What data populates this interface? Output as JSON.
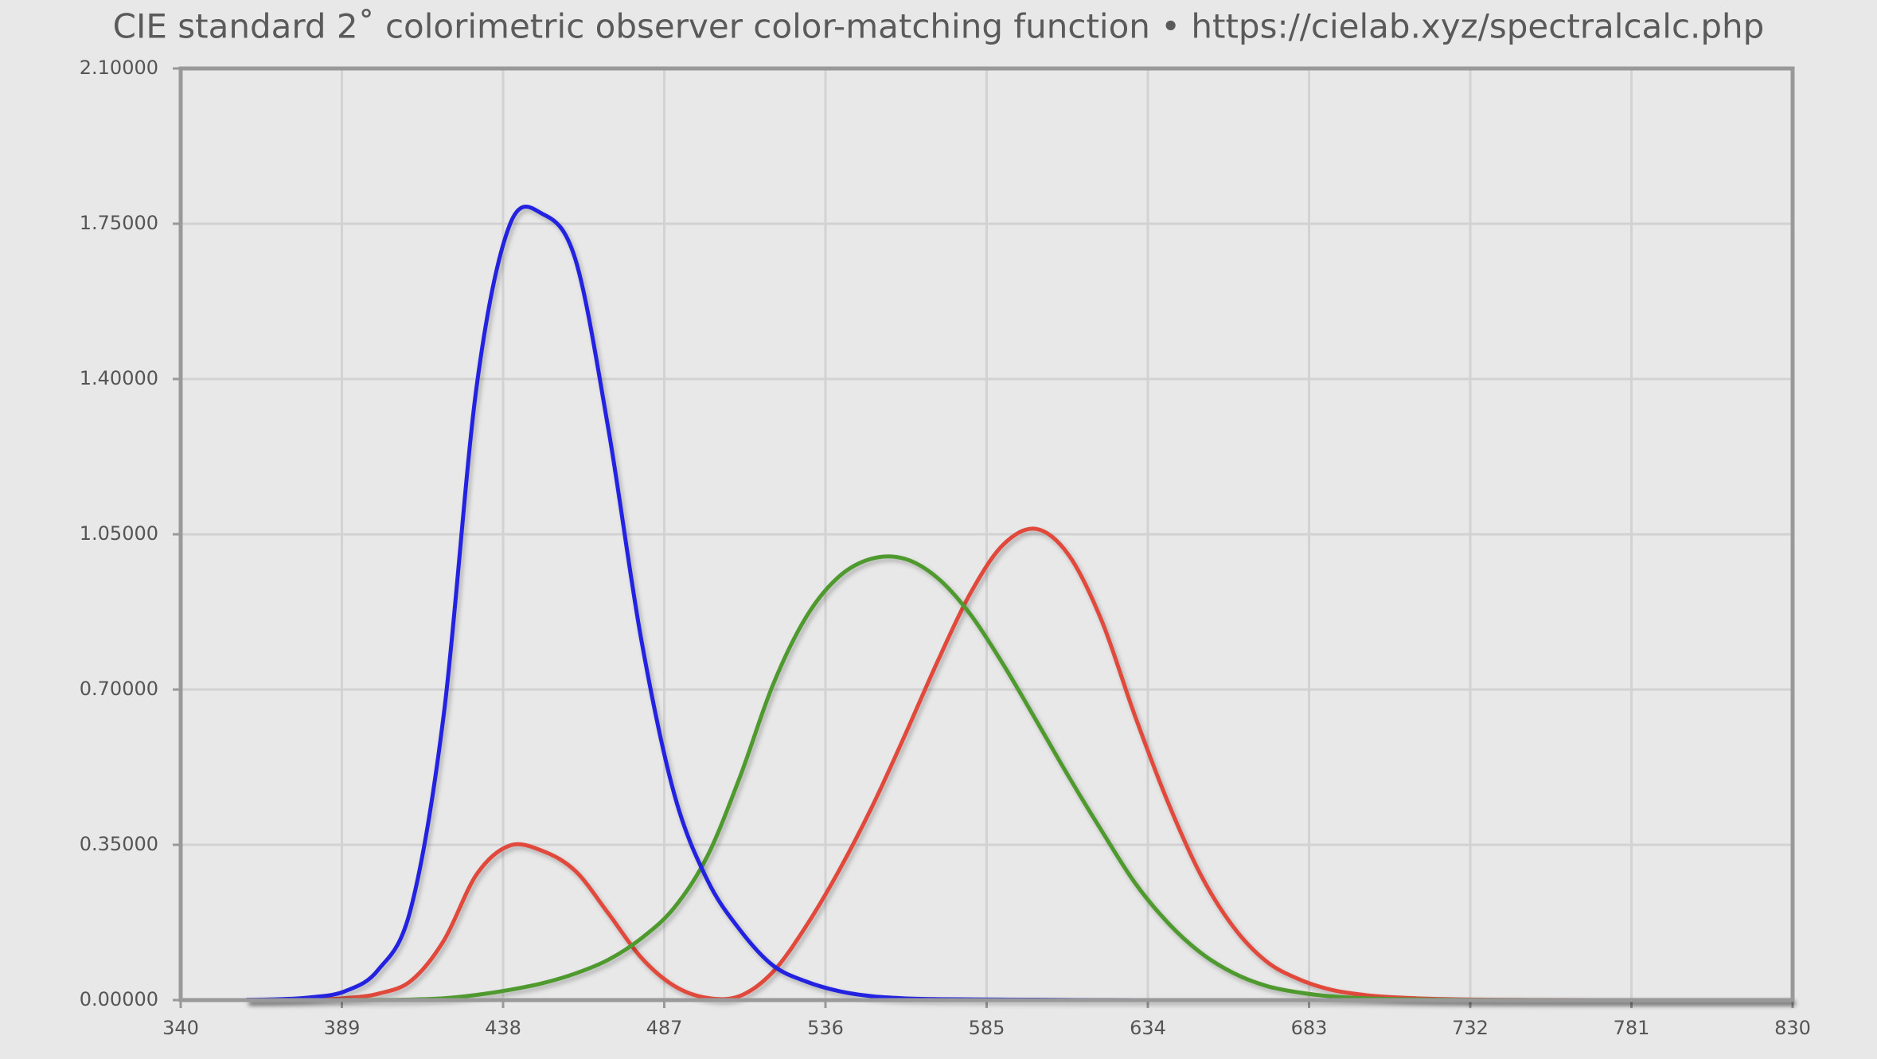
{
  "chart_data": {
    "type": "line",
    "title": "CIE standard 2˚ colorimetric observer color-matching function  •  https://cielab.xyz/spectralcalc.php",
    "x": [
      360,
      370,
      380,
      390,
      400,
      410,
      420,
      430,
      440,
      450,
      460,
      470,
      480,
      490,
      500,
      510,
      520,
      530,
      540,
      550,
      560,
      570,
      580,
      590,
      600,
      610,
      620,
      630,
      640,
      650,
      660,
      670,
      680,
      690,
      700,
      710,
      720,
      730,
      740,
      750,
      760,
      770,
      780,
      790,
      800,
      810,
      820,
      830
    ],
    "series": [
      {
        "color": "#e04a3a",
        "values": [
          0.00013,
          0.000415,
          0.001368,
          0.004243,
          0.01431,
          0.04351,
          0.13438,
          0.2839,
          0.34828,
          0.3362,
          0.2908,
          0.19536,
          0.09564,
          0.03201,
          0.0049,
          0.0093,
          0.06327,
          0.1655,
          0.2904,
          0.43345,
          0.5945,
          0.7621,
          0.9163,
          1.0263,
          1.0622,
          1.0026,
          0.85445,
          0.6424,
          0.4479,
          0.2835,
          0.1649,
          0.0874,
          0.04677,
          0.0227,
          0.011359,
          0.00579,
          0.002899,
          0.00144,
          0.00069,
          0.000332,
          0.000166,
          8.3e-05,
          4.2e-05,
          2.1e-05,
          1e-05,
          5e-06,
          2.5e-06,
          1.3e-06
        ]
      },
      {
        "color": "#4f9a2f",
        "values": [
          4e-06,
          1.2e-05,
          3.9e-05,
          0.00012,
          0.000396,
          0.00121,
          0.004,
          0.0116,
          0.023,
          0.038,
          0.06,
          0.09098,
          0.13902,
          0.20802,
          0.323,
          0.503,
          0.71,
          0.862,
          0.954,
          0.99495,
          0.995,
          0.952,
          0.87,
          0.757,
          0.631,
          0.503,
          0.381,
          0.265,
          0.175,
          0.107,
          0.061,
          0.032,
          0.017,
          0.00821,
          0.004102,
          0.002091,
          0.001047,
          0.00052,
          0.000249,
          0.00012,
          6e-05,
          3e-05,
          1.5e-05,
          7.5e-06,
          3.7e-06,
          1.8e-06,
          9e-07,
          5e-07
        ]
      },
      {
        "color": "#2222e0",
        "values": [
          0.000606,
          0.001946,
          0.00645,
          0.02005,
          0.06785,
          0.2074,
          0.6456,
          1.3856,
          1.74706,
          1.77211,
          1.6692,
          1.28764,
          0.81295,
          0.46518,
          0.272,
          0.1582,
          0.07825,
          0.04216,
          0.0203,
          0.00875,
          0.0039,
          0.0021,
          0.00165,
          0.0011,
          0.0008,
          0.00034,
          0.00019,
          5e-05,
          2e-05,
          0,
          0,
          0,
          0,
          0,
          0,
          0,
          0,
          0,
          0,
          0,
          0,
          0,
          0,
          0,
          0,
          0,
          0,
          0
        ]
      }
    ],
    "xlim": [
      340,
      830
    ],
    "xticks": [
      340,
      389,
      438,
      487,
      536,
      585,
      634,
      683,
      732,
      781,
      830
    ],
    "ylim": [
      0,
      2.1
    ],
    "yticks": [
      {
        "value": 0,
        "label": "0.00000"
      },
      {
        "value": 0.35,
        "label": "0.35000"
      },
      {
        "value": 0.7,
        "label": "0.70000"
      },
      {
        "value": 1.05,
        "label": "1.05000"
      },
      {
        "value": 1.4,
        "label": "1.40000"
      },
      {
        "value": 1.75,
        "label": "1.75000"
      },
      {
        "value": 2.1,
        "label": "2.10000"
      }
    ],
    "grid": true
  }
}
